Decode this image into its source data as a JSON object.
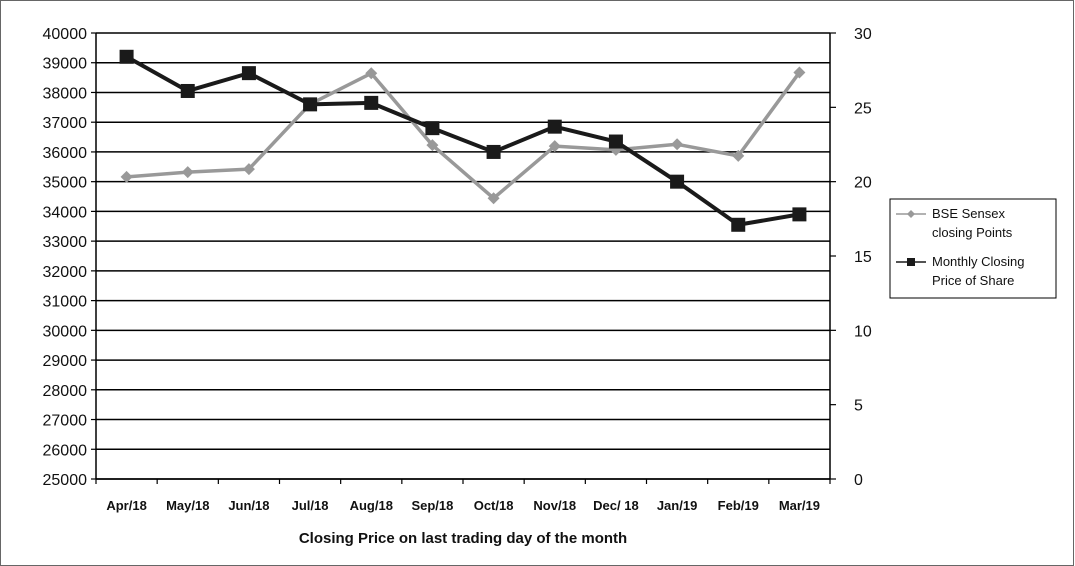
{
  "chart_data": {
    "type": "line",
    "title": "",
    "xlabel": "Closing Price on last trading day of the month",
    "ylabel_left": "",
    "ylabel_right": "",
    "categories": [
      "Apr/18",
      "May/18",
      "Jun/18",
      "Jul/18",
      "Aug/18",
      "Sep/18",
      "Oct/18",
      "Nov/18",
      "Dec/ 18",
      "Jan/19",
      "Feb/19",
      "Mar/19"
    ],
    "y_left": {
      "min": 25000,
      "max": 40000,
      "step": 1000
    },
    "y_right": {
      "min": 0,
      "max": 30,
      "step": 5
    },
    "grid": true,
    "legend_position": "right",
    "series": [
      {
        "name": "BSE Sensex closing Points",
        "legend_lines": [
          "BSE Sensex",
          "closing Points"
        ],
        "axis": "left",
        "color": "#999999",
        "marker": "diamond",
        "values": [
          35160,
          35322,
          35423,
          37607,
          38645,
          36227,
          34442,
          36194,
          36068,
          36257,
          35867,
          38673
        ]
      },
      {
        "name": "Monthly Closing Price of Share",
        "legend_lines": [
          "Monthly Closing",
          "Price of Share"
        ],
        "axis": "right",
        "color": "#1a1a1a",
        "marker": "square",
        "values": [
          28.4,
          26.1,
          27.3,
          25.2,
          25.3,
          23.6,
          22.0,
          23.7,
          22.7,
          20.0,
          17.1,
          17.8
        ]
      }
    ]
  }
}
